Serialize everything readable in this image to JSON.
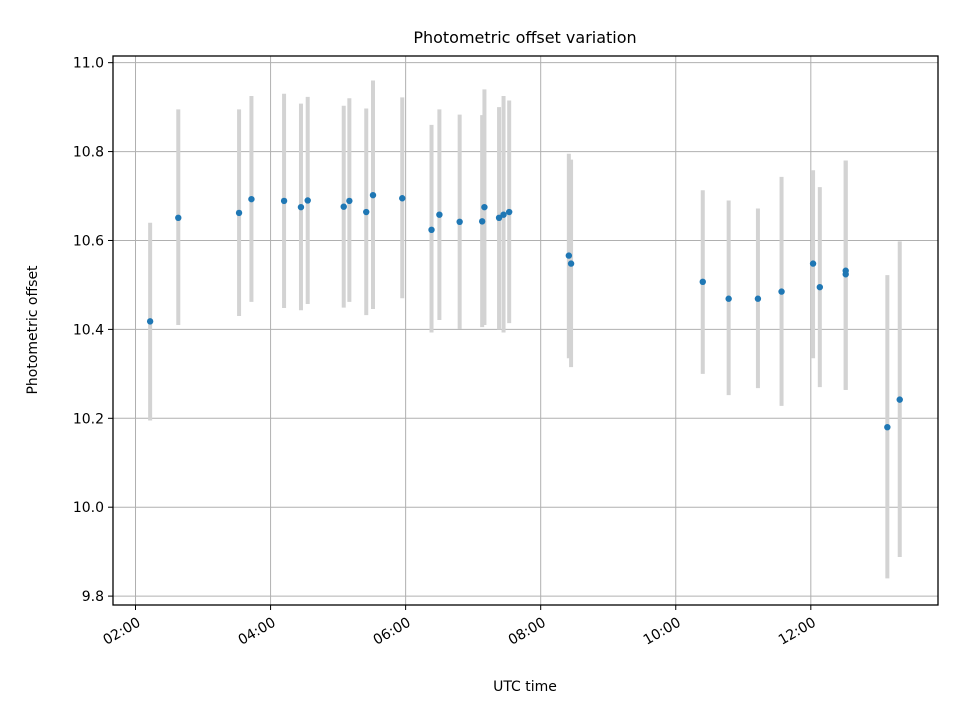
{
  "chart_data": {
    "type": "scatter",
    "title": "Photometric offset variation",
    "xlabel": "UTC time",
    "ylabel": "Photometric offset",
    "x_ticks": [
      "02:00",
      "04:00",
      "06:00",
      "08:00",
      "10:00",
      "12:00"
    ],
    "y_ticks": [
      "9.8",
      "10.0",
      "10.2",
      "10.4",
      "10.6",
      "10.8",
      "11.0"
    ],
    "xlim": [
      "01:40",
      "13:53"
    ],
    "ylim": [
      9.78,
      11.015
    ],
    "grid": true,
    "marker_color": "#1f77b4",
    "errorbar_color": "#d3d3d3",
    "points": [
      {
        "x": "02:13",
        "y": 10.418,
        "err_low": 10.195,
        "err_high": 10.64
      },
      {
        "x": "02:38",
        "y": 10.651,
        "err_low": 10.41,
        "err_high": 10.895
      },
      {
        "x": "03:32",
        "y": 10.662,
        "err_low": 10.43,
        "err_high": 10.895
      },
      {
        "x": "03:43",
        "y": 10.693,
        "err_low": 10.462,
        "err_high": 10.925
      },
      {
        "x": "04:12",
        "y": 10.689,
        "err_low": 10.448,
        "err_high": 10.93
      },
      {
        "x": "04:27",
        "y": 10.675,
        "err_low": 10.443,
        "err_high": 10.908
      },
      {
        "x": "04:33",
        "y": 10.69,
        "err_low": 10.457,
        "err_high": 10.923
      },
      {
        "x": "05:05",
        "y": 10.676,
        "err_low": 10.449,
        "err_high": 10.903
      },
      {
        "x": "05:10",
        "y": 10.689,
        "err_low": 10.462,
        "err_high": 10.92
      },
      {
        "x": "05:25",
        "y": 10.664,
        "err_low": 10.432,
        "err_high": 10.897
      },
      {
        "x": "05:31",
        "y": 10.702,
        "err_low": 10.446,
        "err_high": 10.96
      },
      {
        "x": "05:57",
        "y": 10.695,
        "err_low": 10.47,
        "err_high": 10.922
      },
      {
        "x": "06:23",
        "y": 10.624,
        "err_low": 10.393,
        "err_high": 10.86
      },
      {
        "x": "06:30",
        "y": 10.658,
        "err_low": 10.421,
        "err_high": 10.895
      },
      {
        "x": "06:48",
        "y": 10.642,
        "err_low": 10.401,
        "err_high": 10.883
      },
      {
        "x": "07:08",
        "y": 10.643,
        "err_low": 10.405,
        "err_high": 10.882
      },
      {
        "x": "07:10",
        "y": 10.675,
        "err_low": 10.41,
        "err_high": 10.94
      },
      {
        "x": "07:23",
        "y": 10.651,
        "err_low": 10.4,
        "err_high": 10.9
      },
      {
        "x": "07:27",
        "y": 10.658,
        "err_low": 10.393,
        "err_high": 10.925
      },
      {
        "x": "07:32",
        "y": 10.664,
        "err_low": 10.414,
        "err_high": 10.915
      },
      {
        "x": "08:25",
        "y": 10.566,
        "err_low": 10.335,
        "err_high": 10.795
      },
      {
        "x": "08:27",
        "y": 10.548,
        "err_low": 10.315,
        "err_high": 10.782
      },
      {
        "x": "10:24",
        "y": 10.507,
        "err_low": 10.3,
        "err_high": 10.713
      },
      {
        "x": "10:47",
        "y": 10.469,
        "err_low": 10.252,
        "err_high": 10.69
      },
      {
        "x": "11:13",
        "y": 10.469,
        "err_low": 10.268,
        "err_high": 10.672
      },
      {
        "x": "11:34",
        "y": 10.485,
        "err_low": 10.228,
        "err_high": 10.743
      },
      {
        "x": "12:02",
        "y": 10.548,
        "err_low": 10.335,
        "err_high": 10.758
      },
      {
        "x": "12:08",
        "y": 10.495,
        "err_low": 10.27,
        "err_high": 10.72
      },
      {
        "x": "12:31",
        "y": 10.532,
        "err_low": 10.264,
        "err_high": 10.78
      },
      {
        "x": "12:31",
        "y": 10.524,
        "err_low": 10.264,
        "err_high": 10.78
      },
      {
        "x": "13:08",
        "y": 10.18,
        "err_low": 9.84,
        "err_high": 10.522
      },
      {
        "x": "13:19",
        "y": 10.242,
        "err_low": 9.888,
        "err_high": 10.598
      }
    ]
  }
}
